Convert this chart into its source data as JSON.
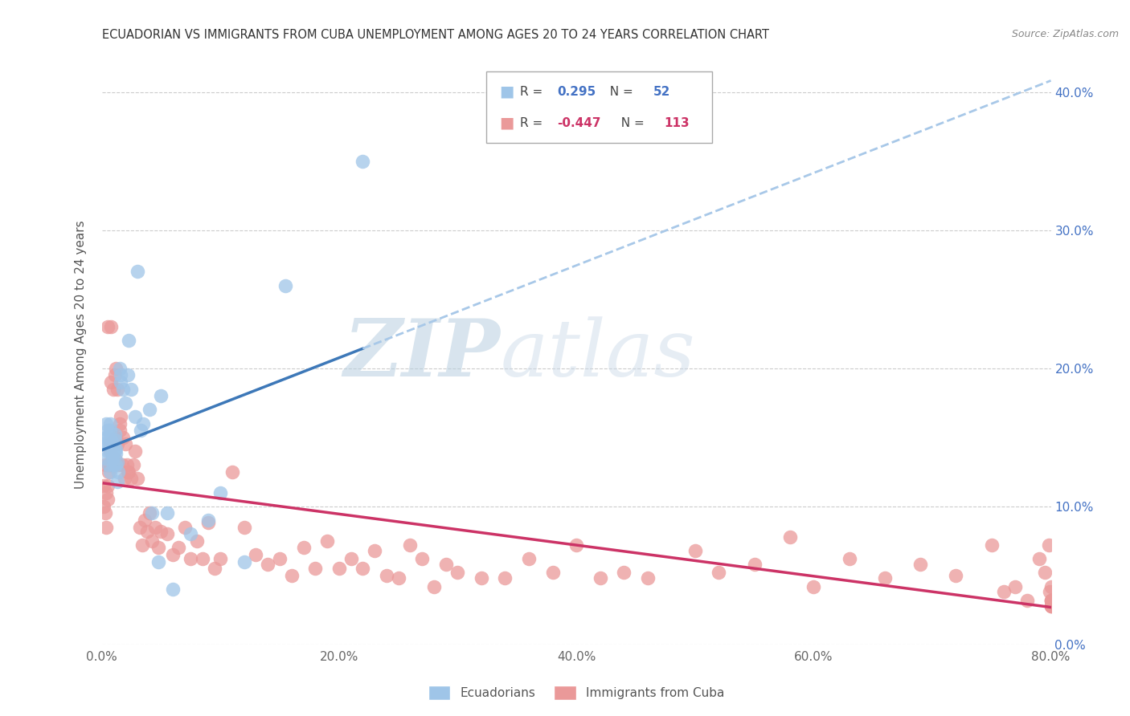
{
  "title": "ECUADORIAN VS IMMIGRANTS FROM CUBA UNEMPLOYMENT AMONG AGES 20 TO 24 YEARS CORRELATION CHART",
  "source": "Source: ZipAtlas.com",
  "ylabel": "Unemployment Among Ages 20 to 24 years",
  "legend_labels": [
    "Ecuadorians",
    "Immigrants from Cuba"
  ],
  "blue_R": "0.295",
  "blue_N": "52",
  "pink_R": "-0.447",
  "pink_N": "113",
  "blue_color": "#9fc5e8",
  "pink_color": "#ea9999",
  "blue_line_color": "#3d78b8",
  "pink_line_color": "#cc3366",
  "dashed_line_color": "#a8c8e8",
  "watermark_zip": "ZIP",
  "watermark_atlas": "atlas",
  "xlim": [
    0.0,
    0.8
  ],
  "ylim": [
    0.0,
    0.42
  ],
  "yticks": [
    0.0,
    0.1,
    0.2,
    0.3,
    0.4
  ],
  "xticks": [
    0.0,
    0.2,
    0.4,
    0.6,
    0.8
  ],
  "blue_scatter_x": [
    0.002,
    0.003,
    0.004,
    0.004,
    0.005,
    0.005,
    0.005,
    0.006,
    0.006,
    0.007,
    0.007,
    0.007,
    0.008,
    0.008,
    0.009,
    0.009,
    0.01,
    0.01,
    0.01,
    0.011,
    0.011,
    0.011,
    0.012,
    0.012,
    0.012,
    0.013,
    0.013,
    0.014,
    0.015,
    0.016,
    0.016,
    0.018,
    0.02,
    0.022,
    0.023,
    0.025,
    0.028,
    0.03,
    0.033,
    0.035,
    0.04,
    0.042,
    0.048,
    0.05,
    0.055,
    0.06,
    0.075,
    0.09,
    0.1,
    0.12,
    0.155,
    0.22
  ],
  "blue_scatter_y": [
    0.145,
    0.15,
    0.135,
    0.16,
    0.14,
    0.15,
    0.155,
    0.13,
    0.145,
    0.125,
    0.155,
    0.16,
    0.14,
    0.148,
    0.135,
    0.142,
    0.13,
    0.145,
    0.138,
    0.14,
    0.148,
    0.152,
    0.13,
    0.138,
    0.142,
    0.118,
    0.132,
    0.125,
    0.2,
    0.195,
    0.19,
    0.185,
    0.175,
    0.195,
    0.22,
    0.185,
    0.165,
    0.27,
    0.155,
    0.16,
    0.17,
    0.095,
    0.06,
    0.18,
    0.095,
    0.04,
    0.08,
    0.09,
    0.11,
    0.06,
    0.26,
    0.35
  ],
  "pink_scatter_x": [
    0.002,
    0.002,
    0.003,
    0.003,
    0.004,
    0.004,
    0.005,
    0.005,
    0.005,
    0.006,
    0.006,
    0.007,
    0.007,
    0.008,
    0.008,
    0.008,
    0.009,
    0.009,
    0.01,
    0.01,
    0.01,
    0.011,
    0.011,
    0.012,
    0.012,
    0.013,
    0.013,
    0.014,
    0.015,
    0.015,
    0.016,
    0.017,
    0.018,
    0.019,
    0.02,
    0.021,
    0.022,
    0.023,
    0.025,
    0.027,
    0.028,
    0.03,
    0.032,
    0.034,
    0.036,
    0.038,
    0.04,
    0.042,
    0.045,
    0.048,
    0.05,
    0.055,
    0.06,
    0.065,
    0.07,
    0.075,
    0.08,
    0.085,
    0.09,
    0.095,
    0.1,
    0.11,
    0.12,
    0.13,
    0.14,
    0.15,
    0.16,
    0.17,
    0.18,
    0.19,
    0.2,
    0.21,
    0.22,
    0.23,
    0.24,
    0.25,
    0.26,
    0.27,
    0.28,
    0.29,
    0.3,
    0.32,
    0.34,
    0.36,
    0.38,
    0.4,
    0.42,
    0.44,
    0.46,
    0.5,
    0.52,
    0.55,
    0.58,
    0.6,
    0.63,
    0.66,
    0.69,
    0.72,
    0.75,
    0.76,
    0.77,
    0.78,
    0.79,
    0.795,
    0.798,
    0.799,
    0.8,
    0.8,
    0.8,
    0.8,
    0.8,
    0.8,
    0.8
  ],
  "pink_scatter_y": [
    0.115,
    0.1,
    0.13,
    0.095,
    0.11,
    0.085,
    0.23,
    0.115,
    0.105,
    0.13,
    0.125,
    0.145,
    0.14,
    0.23,
    0.13,
    0.19,
    0.145,
    0.135,
    0.145,
    0.185,
    0.145,
    0.135,
    0.195,
    0.15,
    0.2,
    0.185,
    0.145,
    0.13,
    0.16,
    0.155,
    0.165,
    0.13,
    0.15,
    0.12,
    0.145,
    0.13,
    0.125,
    0.125,
    0.12,
    0.13,
    0.14,
    0.12,
    0.085,
    0.072,
    0.09,
    0.082,
    0.095,
    0.075,
    0.085,
    0.07,
    0.082,
    0.08,
    0.065,
    0.07,
    0.085,
    0.062,
    0.075,
    0.062,
    0.088,
    0.055,
    0.062,
    0.125,
    0.085,
    0.065,
    0.058,
    0.062,
    0.05,
    0.07,
    0.055,
    0.075,
    0.055,
    0.062,
    0.055,
    0.068,
    0.05,
    0.048,
    0.072,
    0.062,
    0.042,
    0.058,
    0.052,
    0.048,
    0.048,
    0.062,
    0.052,
    0.072,
    0.048,
    0.052,
    0.048,
    0.068,
    0.052,
    0.058,
    0.078,
    0.042,
    0.062,
    0.048,
    0.058,
    0.05,
    0.072,
    0.038,
    0.042,
    0.032,
    0.062,
    0.052,
    0.072,
    0.038,
    0.042,
    0.032,
    0.028,
    0.032,
    0.028,
    0.032,
    0.028
  ]
}
